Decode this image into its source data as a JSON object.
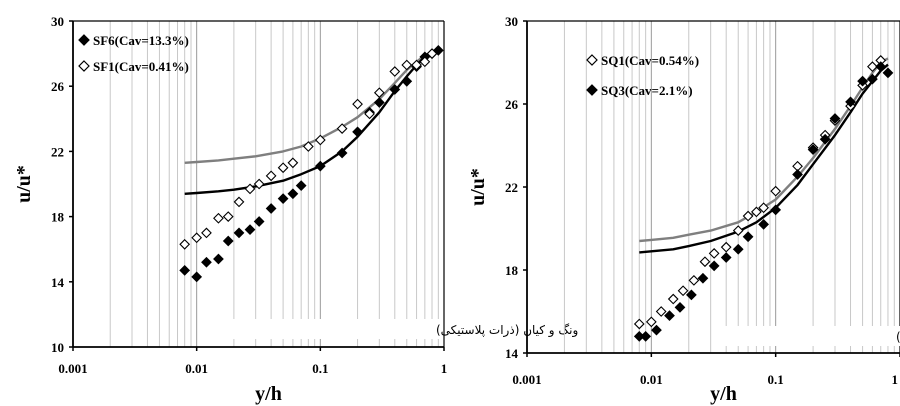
{
  "chart_data": [
    {
      "type": "scatter",
      "xlabel": "y/h",
      "ylabel": "u/u*",
      "xscale": "log",
      "xlim": [
        0.001,
        1
      ],
      "ylim": [
        10,
        30
      ],
      "xticks": [
        "0.001",
        "0.01",
        "0.1",
        "1"
      ],
      "yticks": [
        "10",
        "14",
        "18",
        "22",
        "26",
        "30"
      ],
      "grid": "vertical minor/major log gridlines",
      "legend_position": "top-left",
      "annotation": "ونگ و کیان (ذرات پلاستیکی)",
      "series": [
        {
          "name": "SF6(Cav=13.3%)",
          "marker": "filled-diamond",
          "color": "#000000",
          "x": [
            0.008,
            0.01,
            0.012,
            0.015,
            0.018,
            0.022,
            0.027,
            0.032,
            0.04,
            0.05,
            0.06,
            0.07,
            0.1,
            0.15,
            0.2,
            0.25,
            0.3,
            0.4,
            0.5,
            0.6,
            0.7,
            0.8,
            0.9
          ],
          "y": [
            14.7,
            14.3,
            15.2,
            15.4,
            16.5,
            17.0,
            17.2,
            17.7,
            18.5,
            19.1,
            19.4,
            19.9,
            21.1,
            21.9,
            23.2,
            24.4,
            25.0,
            25.8,
            26.3,
            27.2,
            27.8,
            28.0,
            28.2
          ]
        },
        {
          "name": "SF1(Cav=0.41%)",
          "marker": "open-diamond",
          "color": "#000000",
          "x": [
            0.008,
            0.01,
            0.012,
            0.015,
            0.018,
            0.022,
            0.027,
            0.032,
            0.04,
            0.05,
            0.06,
            0.08,
            0.1,
            0.15,
            0.2,
            0.25,
            0.3,
            0.4,
            0.5,
            0.6,
            0.7,
            0.8
          ],
          "y": [
            16.3,
            16.7,
            17.0,
            17.9,
            18.0,
            18.9,
            19.7,
            20.0,
            20.5,
            21.0,
            21.3,
            22.3,
            22.7,
            23.4,
            24.9,
            24.3,
            25.6,
            26.9,
            27.3,
            27.3,
            27.5,
            28.0
          ]
        },
        {
          "name": "",
          "type": "line",
          "color": "#7f7f7f",
          "x": [
            0.008,
            0.01,
            0.015,
            0.02,
            0.03,
            0.05,
            0.07,
            0.1,
            0.15,
            0.2,
            0.3,
            0.4,
            0.5,
            0.6,
            0.7,
            0.8,
            0.9
          ],
          "y": [
            21.3,
            21.35,
            21.45,
            21.55,
            21.7,
            22.0,
            22.3,
            22.8,
            23.5,
            24.1,
            25.2,
            26.2,
            27.0,
            27.5,
            27.9,
            28.1,
            28.2
          ]
        },
        {
          "name": "",
          "type": "line",
          "color": "#000000",
          "x": [
            0.008,
            0.01,
            0.015,
            0.02,
            0.03,
            0.05,
            0.07,
            0.1,
            0.15,
            0.2,
            0.3,
            0.4,
            0.5,
            0.6,
            0.7,
            0.8,
            0.9
          ],
          "y": [
            19.4,
            19.45,
            19.55,
            19.65,
            19.85,
            20.2,
            20.6,
            21.1,
            22.0,
            22.9,
            24.4,
            25.7,
            26.6,
            27.3,
            27.8,
            28.1,
            28.3
          ]
        }
      ]
    },
    {
      "type": "scatter",
      "xlabel": "y/h",
      "ylabel": "u/u*",
      "xscale": "log",
      "xlim": [
        0.001,
        1
      ],
      "ylim": [
        14,
        30
      ],
      "xticks": [
        "0.001",
        "0.01",
        "0.1",
        "1"
      ],
      "yticks": [
        "14",
        "18",
        "22",
        "26",
        "30"
      ],
      "grid": "vertical minor/major log gridlines",
      "legend_position": "top-left",
      "annotation": "ونگ و کیان (ذرات رسوب)",
      "series": [
        {
          "name": "SQ1(Cav=0.54%)",
          "marker": "open-diamond",
          "color": "#000000",
          "x": [
            0.008,
            0.01,
            0.012,
            0.015,
            0.018,
            0.022,
            0.027,
            0.032,
            0.04,
            0.05,
            0.06,
            0.07,
            0.08,
            0.1,
            0.15,
            0.2,
            0.25,
            0.3,
            0.4,
            0.5,
            0.6,
            0.7
          ],
          "y": [
            15.4,
            15.5,
            16.0,
            16.6,
            17.0,
            17.5,
            18.4,
            18.8,
            19.1,
            19.9,
            20.6,
            20.8,
            21.0,
            21.8,
            23.0,
            23.9,
            24.5,
            25.2,
            25.9,
            26.9,
            27.8,
            28.1
          ]
        },
        {
          "name": "SQ3(Cav=2.1%)",
          "marker": "filled-diamond",
          "color": "#000000",
          "x": [
            0.008,
            0.009,
            0.011,
            0.014,
            0.017,
            0.021,
            0.026,
            0.032,
            0.04,
            0.05,
            0.06,
            0.08,
            0.1,
            0.15,
            0.2,
            0.25,
            0.3,
            0.4,
            0.5,
            0.6,
            0.7,
            0.8
          ],
          "y": [
            14.8,
            14.8,
            15.1,
            15.8,
            16.2,
            16.8,
            17.6,
            18.2,
            18.6,
            19.0,
            19.6,
            20.2,
            20.9,
            22.6,
            23.8,
            24.3,
            25.3,
            26.1,
            27.1,
            27.2,
            27.8,
            27.5
          ]
        },
        {
          "name": "",
          "type": "line",
          "color": "#7f7f7f",
          "x": [
            0.008,
            0.01,
            0.015,
            0.02,
            0.03,
            0.05,
            0.07,
            0.1,
            0.15,
            0.2,
            0.3,
            0.4,
            0.5,
            0.6,
            0.7,
            0.8
          ],
          "y": [
            19.4,
            19.45,
            19.55,
            19.7,
            19.9,
            20.3,
            20.8,
            21.4,
            22.5,
            23.4,
            24.8,
            25.9,
            26.8,
            27.5,
            28.0,
            28.2
          ]
        },
        {
          "name": "",
          "type": "line",
          "color": "#000000",
          "x": [
            0.008,
            0.01,
            0.015,
            0.02,
            0.03,
            0.05,
            0.07,
            0.1,
            0.15,
            0.2,
            0.3,
            0.4,
            0.5,
            0.6,
            0.7,
            0.8
          ],
          "y": [
            18.85,
            18.9,
            19.0,
            19.15,
            19.4,
            19.85,
            20.3,
            21.0,
            22.1,
            23.1,
            24.5,
            25.6,
            26.5,
            27.1,
            27.6,
            27.9
          ]
        }
      ]
    }
  ]
}
